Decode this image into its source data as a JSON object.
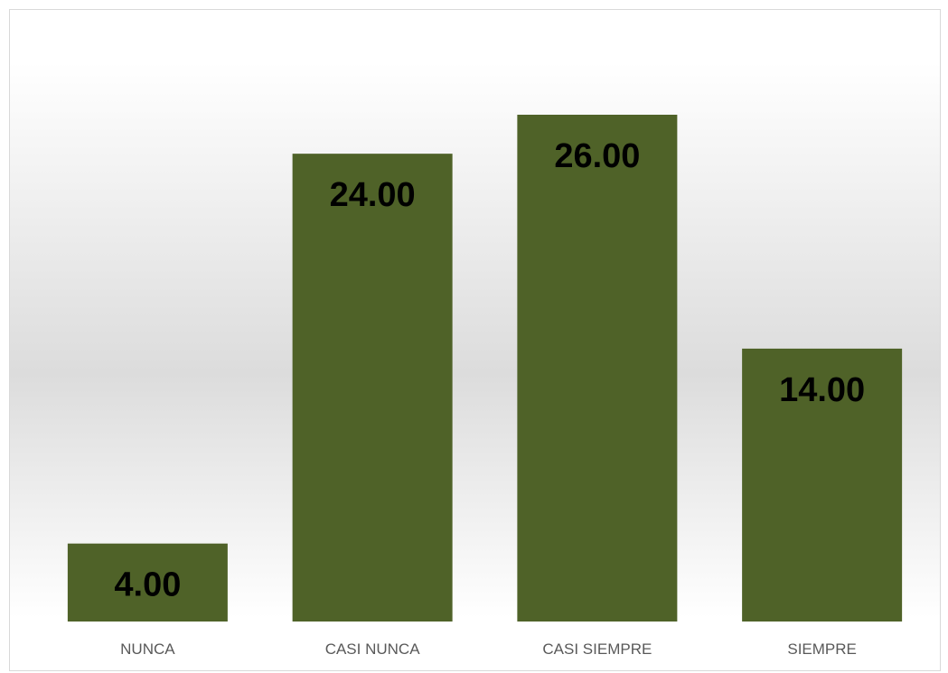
{
  "chart_data": {
    "type": "bar",
    "categories": [
      "NUNCA",
      "CASI NUNCA",
      "CASI SIEMPRE",
      "SIEMPRE"
    ],
    "values": [
      4,
      24,
      26,
      14
    ],
    "value_labels": [
      "4.00",
      "24.00",
      "26.00",
      "14.00"
    ],
    "color": "#4f6228"
  }
}
